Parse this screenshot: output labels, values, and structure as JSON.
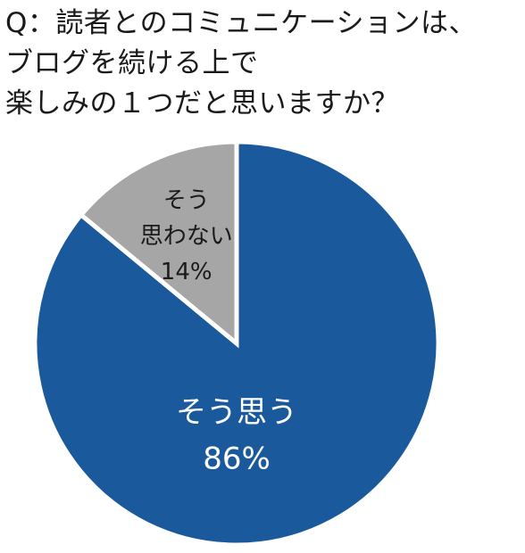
{
  "question": {
    "lines": [
      "Q：読者とのコミュニケーションは、",
      "ブログを続ける上で",
      "楽しみの１つだと思いますか？"
    ]
  },
  "chart_data": {
    "type": "pie",
    "title": "Q：読者とのコミュニケーションは、ブログを続ける上で楽しみの１つだと思いますか？",
    "slices": [
      {
        "label_lines": [
          "そう思う"
        ],
        "value": 86,
        "value_label": "86%",
        "color": "#1a5a9c",
        "text_color": "#ffffff"
      },
      {
        "label_lines": [
          "そう",
          "思わない"
        ],
        "value": 14,
        "value_label": "14%",
        "color": "#a6a6a6",
        "text_color": "#1a1a1a"
      }
    ],
    "start_angle_deg": 0,
    "direction": "clockwise"
  }
}
